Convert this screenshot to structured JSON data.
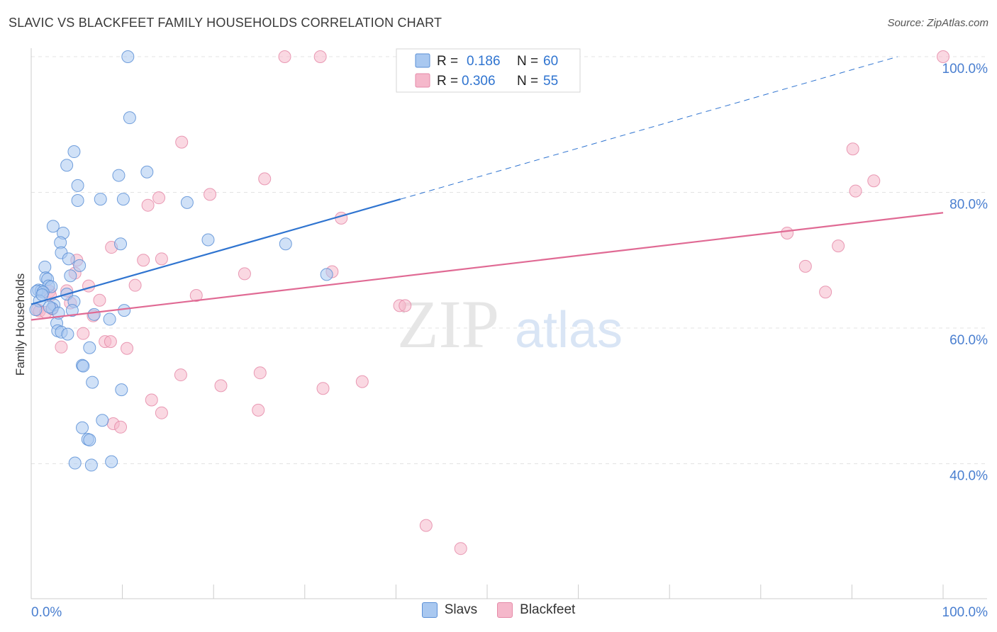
{
  "title": "SLAVIC VS BLACKFEET FAMILY HOUSEHOLDS CORRELATION CHART",
  "source": "Source: ZipAtlas.com",
  "watermark": {
    "zip": "ZIP",
    "atlas": "atlas"
  },
  "legend_top": [
    {
      "r_label": "R =",
      "r_value": "0.186",
      "n_label": "N =",
      "n_value": "60"
    },
    {
      "r_label": "R =",
      "r_value": "0.306",
      "n_label": "N =",
      "n_value": "55"
    }
  ],
  "legend_bottom": [
    "Slavs",
    "Blackfeet"
  ],
  "colors": {
    "slavs_fill": "#a9c8f0",
    "slavs_stroke": "#5b8fd6",
    "slavs_line": "#2f74d0",
    "blackfeet_fill": "#f5b8cb",
    "blackfeet_stroke": "#e58aa8",
    "blackfeet_line": "#e06a94",
    "axis_label": "#4a7fd0"
  },
  "chart_data": {
    "type": "scatter",
    "title": "SLAVIC VS BLACKFEET FAMILY HOUSEHOLDS CORRELATION CHART",
    "xlabel": "",
    "ylabel": "Family Households",
    "xlim": [
      0,
      100
    ],
    "ylim": [
      20,
      102
    ],
    "x_tick_labels": [
      "0.0%",
      "100.0%"
    ],
    "y_ticks": [
      40,
      60,
      80,
      100
    ],
    "y_tick_labels": [
      "40.0%",
      "60.0%",
      "80.0%",
      "100.0%"
    ],
    "grid": true,
    "series": [
      {
        "name": "Slavs",
        "r": 0.186,
        "n": 60,
        "trend": {
          "x0": 0,
          "y0": 63.5,
          "x1": 40.5,
          "y1": 79.0,
          "dash_to_x": 95,
          "dash_to_y": 100
        },
        "points": [
          [
            10.6,
            100
          ],
          [
            10.8,
            91
          ],
          [
            4.7,
            86
          ],
          [
            3.9,
            84
          ],
          [
            12.7,
            83
          ],
          [
            9.6,
            82.5
          ],
          [
            5.1,
            81
          ],
          [
            7.6,
            79
          ],
          [
            10.1,
            79
          ],
          [
            5.1,
            78.8
          ],
          [
            17.1,
            78.5
          ],
          [
            2.4,
            75
          ],
          [
            3.5,
            74
          ],
          [
            3.2,
            72.6
          ],
          [
            9.8,
            72.4
          ],
          [
            19.4,
            73
          ],
          [
            27.9,
            72.4
          ],
          [
            3.3,
            71.1
          ],
          [
            4.1,
            70.2
          ],
          [
            5.3,
            69.2
          ],
          [
            1.5,
            69
          ],
          [
            1.6,
            67.4
          ],
          [
            1.8,
            67.2
          ],
          [
            4.3,
            67.7
          ],
          [
            32.4,
            67.9
          ],
          [
            1.9,
            66.2
          ],
          [
            2.2,
            66.1
          ],
          [
            0.8,
            65.6
          ],
          [
            1.1,
            65.5
          ],
          [
            0.6,
            65.4
          ],
          [
            1.3,
            65.3
          ],
          [
            3.9,
            65.0
          ],
          [
            0.9,
            64.0
          ],
          [
            2.5,
            63.4
          ],
          [
            4.7,
            63.9
          ],
          [
            2.3,
            62.9
          ],
          [
            0.5,
            62.7
          ],
          [
            4.5,
            62.6
          ],
          [
            6.9,
            62.0
          ],
          [
            10.2,
            62.6
          ],
          [
            2.8,
            60.7
          ],
          [
            8.6,
            61.3
          ],
          [
            2.9,
            59.6
          ],
          [
            3.3,
            59.4
          ],
          [
            4.0,
            59.1
          ],
          [
            6.4,
            57.1
          ],
          [
            5.6,
            54.5
          ],
          [
            5.7,
            54.4
          ],
          [
            6.7,
            52.0
          ],
          [
            9.9,
            50.9
          ],
          [
            7.8,
            46.4
          ],
          [
            5.6,
            45.3
          ],
          [
            6.2,
            43.6
          ],
          [
            6.4,
            43.5
          ],
          [
            4.8,
            40.1
          ],
          [
            6.6,
            39.8
          ],
          [
            8.8,
            40.3
          ],
          [
            1.2,
            64.9
          ],
          [
            2.0,
            63.1
          ],
          [
            3.0,
            62.2
          ]
        ]
      },
      {
        "name": "Blackfeet",
        "r": 0.306,
        "n": 55,
        "trend": {
          "x0": 0,
          "y0": 61.2,
          "x1": 100,
          "y1": 77.0
        },
        "points": [
          [
            27.8,
            100
          ],
          [
            31.7,
            100
          ],
          [
            100,
            100
          ],
          [
            16.5,
            87.4
          ],
          [
            90.1,
            86.4
          ],
          [
            92.4,
            81.7
          ],
          [
            25.6,
            82.0
          ],
          [
            90.4,
            80.2
          ],
          [
            19.6,
            79.7
          ],
          [
            14.0,
            79.2
          ],
          [
            12.8,
            78.1
          ],
          [
            34.0,
            76.2
          ],
          [
            82.9,
            74.0
          ],
          [
            8.8,
            71.9
          ],
          [
            88.5,
            72.1
          ],
          [
            12.3,
            70.0
          ],
          [
            14.3,
            70.2
          ],
          [
            5.0,
            70.0
          ],
          [
            84.9,
            69.1
          ],
          [
            23.4,
            68.0
          ],
          [
            33.0,
            68.3
          ],
          [
            4.8,
            68.1
          ],
          [
            11.4,
            66.3
          ],
          [
            6.3,
            66.2
          ],
          [
            2.0,
            65.4
          ],
          [
            3.9,
            65.5
          ],
          [
            18.1,
            64.8
          ],
          [
            87.1,
            65.3
          ],
          [
            7.5,
            64.1
          ],
          [
            4.3,
            63.7
          ],
          [
            40.4,
            63.3
          ],
          [
            41.0,
            63.3
          ],
          [
            2.3,
            62.8
          ],
          [
            0.7,
            62.7
          ],
          [
            0.9,
            62.5
          ],
          [
            6.8,
            61.8
          ],
          [
            5.7,
            59.2
          ],
          [
            8.1,
            58.0
          ],
          [
            8.7,
            58.0
          ],
          [
            3.3,
            57.2
          ],
          [
            10.5,
            57.0
          ],
          [
            25.1,
            53.4
          ],
          [
            16.4,
            53.1
          ],
          [
            36.3,
            52.1
          ],
          [
            20.8,
            51.5
          ],
          [
            32.0,
            51.1
          ],
          [
            13.2,
            49.4
          ],
          [
            14.3,
            47.5
          ],
          [
            24.9,
            47.9
          ],
          [
            9.0,
            45.9
          ],
          [
            9.8,
            45.4
          ],
          [
            43.3,
            30.9
          ],
          [
            47.1,
            27.5
          ],
          [
            2.1,
            64.8
          ],
          [
            1.6,
            62.3
          ]
        ]
      }
    ]
  }
}
